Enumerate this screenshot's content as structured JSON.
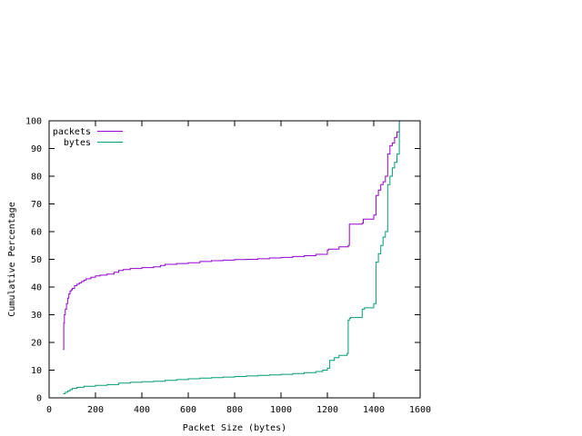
{
  "chart_data": {
    "type": "line",
    "title": "",
    "xlabel": "Packet Size (bytes)",
    "ylabel": "Cumulative Percentage",
    "xlim": [
      0,
      1600
    ],
    "ylim": [
      0,
      100
    ],
    "xticks": [
      0,
      200,
      400,
      600,
      800,
      1000,
      1200,
      1400,
      1600
    ],
    "yticks": [
      0,
      10,
      20,
      30,
      40,
      50,
      60,
      70,
      80,
      90,
      100
    ],
    "xtick_labels": [
      "0",
      "200",
      "400",
      "600",
      "800",
      "1000",
      "1200",
      "1400",
      "1600"
    ],
    "ytick_labels": [
      "0",
      "10",
      "20",
      "30",
      "40",
      "50",
      "60",
      "70",
      "80",
      "90",
      "100"
    ],
    "grid": false,
    "legend_position": "top-left",
    "step": true,
    "series": [
      {
        "name": "packets",
        "color": "#9400d3",
        "x": [
          60,
          63,
          66,
          70,
          75,
          80,
          85,
          90,
          95,
          100,
          110,
          120,
          130,
          140,
          150,
          160,
          180,
          200,
          220,
          250,
          280,
          300,
          320,
          350,
          400,
          450,
          480,
          500,
          550,
          600,
          650,
          700,
          750,
          800,
          850,
          900,
          950,
          1000,
          1050,
          1100,
          1150,
          1200,
          1205,
          1250,
          1290,
          1295,
          1350,
          1355,
          1400,
          1410,
          1420,
          1430,
          1440,
          1450,
          1460,
          1470,
          1480,
          1490,
          1500,
          1510,
          1515
        ],
        "values": [
          17.5,
          27,
          30,
          32,
          34,
          36,
          37.5,
          38.5,
          39,
          39.5,
          40.5,
          41,
          41.5,
          42,
          42.5,
          43,
          43.5,
          44,
          44.3,
          44.7,
          45.3,
          46,
          46.3,
          46.7,
          47,
          47.3,
          47.8,
          48.2,
          48.5,
          48.8,
          49.2,
          49.5,
          49.7,
          49.9,
          50,
          50.2,
          50.5,
          50.7,
          51,
          51.3,
          51.8,
          53.3,
          53.7,
          54.5,
          55,
          62.7,
          63,
          64.5,
          66,
          73,
          75,
          77,
          78,
          80,
          88,
          91,
          92,
          94,
          96,
          100,
          100
        ]
      },
      {
        "name": "bytes",
        "color": "#009e73",
        "x": [
          60,
          70,
          80,
          90,
          100,
          120,
          150,
          200,
          250,
          300,
          350,
          400,
          450,
          500,
          550,
          600,
          650,
          700,
          750,
          800,
          850,
          900,
          950,
          1000,
          1050,
          1100,
          1150,
          1180,
          1200,
          1210,
          1230,
          1250,
          1285,
          1290,
          1295,
          1300,
          1350,
          1360,
          1400,
          1410,
          1420,
          1430,
          1440,
          1450,
          1460,
          1470,
          1480,
          1490,
          1500,
          1510
        ],
        "values": [
          1.5,
          2,
          2.5,
          3,
          3.4,
          3.8,
          4.2,
          4.5,
          4.8,
          5.3,
          5.6,
          5.8,
          6,
          6.3,
          6.6,
          6.9,
          7.1,
          7.3,
          7.5,
          7.7,
          7.9,
          8.1,
          8.3,
          8.5,
          8.8,
          9.1,
          9.5,
          10,
          10.7,
          13.5,
          14.5,
          15.3,
          16,
          28,
          28.7,
          29,
          32,
          32.5,
          34,
          49,
          52,
          55,
          58,
          60,
          77,
          80,
          83,
          85,
          88,
          100
        ]
      }
    ]
  }
}
